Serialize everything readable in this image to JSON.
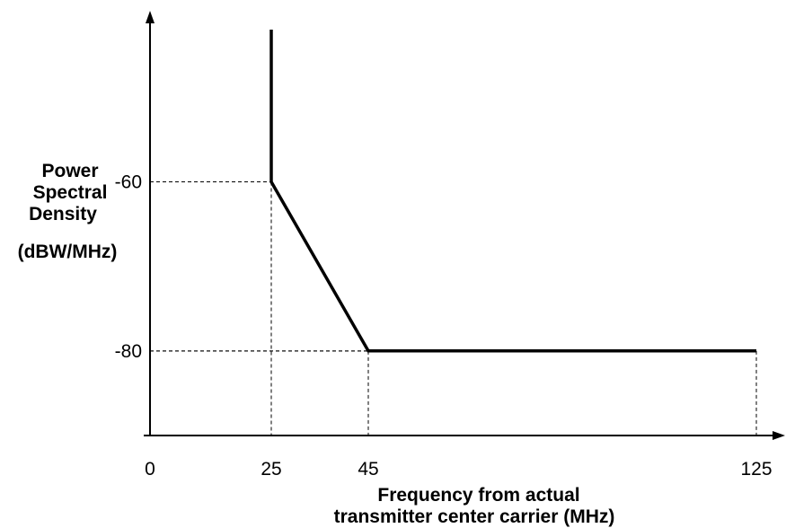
{
  "chart_data": {
    "type": "line",
    "title": "",
    "ylabel_lines": [
      "Power",
      "Spectral",
      "Density"
    ],
    "yunit": "(dBW/MHz)",
    "xlabel_lines": [
      "Frequency from actual",
      "transmitter center carrier (MHz)"
    ],
    "xticks": [
      {
        "value": 0,
        "label": "0"
      },
      {
        "value": 25,
        "label": "25"
      },
      {
        "value": 45,
        "label": "45"
      },
      {
        "value": 125,
        "label": "125"
      }
    ],
    "yticks": [
      {
        "value": -60,
        "label": "-60"
      },
      {
        "value": -80,
        "label": "-80"
      }
    ],
    "xlim": [
      0,
      125
    ],
    "ylim": [
      -90,
      -42
    ],
    "series": [
      {
        "x": [
          25,
          25,
          45,
          125
        ],
        "y": [
          -42,
          -60,
          -80,
          -80
        ]
      }
    ],
    "guides": [
      {
        "x": 25,
        "y": -60
      },
      {
        "x": 45,
        "y": -80
      },
      {
        "x": 125,
        "y": -80
      }
    ],
    "grid": false
  }
}
